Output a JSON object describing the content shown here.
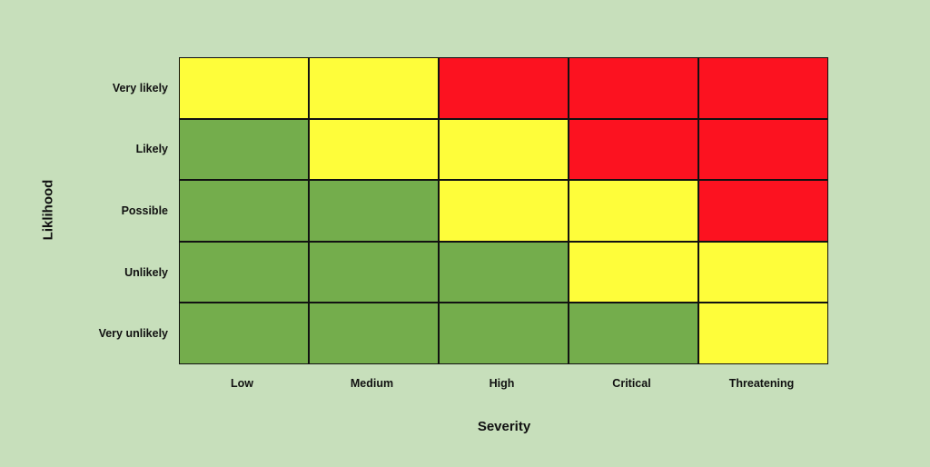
{
  "chart_data": {
    "type": "heatmap",
    "xlabel": "Severity",
    "ylabel": "Liklihood",
    "x_categories": [
      "Low",
      "Medium",
      "High",
      "Critical",
      "Threatening"
    ],
    "y_categories": [
      "Very likely",
      "Likely",
      "Possible",
      "Unlikely",
      "Very unlikely"
    ],
    "matrix": [
      [
        "yellow",
        "yellow",
        "red",
        "red",
        "red"
      ],
      [
        "green",
        "yellow",
        "yellow",
        "red",
        "red"
      ],
      [
        "green",
        "green",
        "yellow",
        "yellow",
        "red"
      ],
      [
        "green",
        "green",
        "green",
        "yellow",
        "yellow"
      ],
      [
        "green",
        "green",
        "green",
        "green",
        "yellow"
      ]
    ],
    "colors": {
      "green": "#74ad4c",
      "yellow": "#fefd3a",
      "red": "#fc1220"
    },
    "background": "#c7dfbb"
  }
}
